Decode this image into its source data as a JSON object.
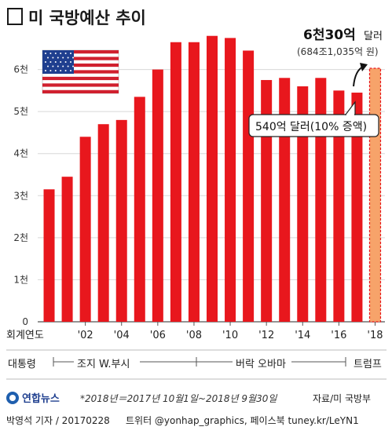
{
  "title": "미 국방예산 추이",
  "chart_data": {
    "type": "bar",
    "categories": [
      "2000",
      "2001",
      "2002",
      "2003",
      "2004",
      "2005",
      "2006",
      "2007",
      "2008",
      "2009",
      "2010",
      "2011",
      "2012",
      "2013",
      "2014",
      "2015",
      "2016",
      "2017",
      "2018"
    ],
    "values": [
      3150,
      3450,
      4400,
      4700,
      4800,
      5350,
      6000,
      6650,
      6650,
      6800,
      6750,
      6450,
      5750,
      5800,
      5600,
      5800,
      5500,
      5450,
      6030
    ],
    "ylim": [
      0,
      7000
    ],
    "ytick_labels": [
      "0",
      "1천",
      "2천",
      "3천",
      "4천",
      "5천",
      "6천"
    ],
    "xtick_labels": [
      "회계연도",
      "'02",
      "'04",
      "'06",
      "'08",
      "'10",
      "'12",
      "'14",
      "'16",
      "'18"
    ],
    "xlabel": "회계연도",
    "colors": {
      "bar": "#e8171d",
      "projected_fill": "#f7a36a",
      "projected_stroke": "#e8171d",
      "grid": "#d8d8d8"
    }
  },
  "annotations": {
    "projection_value": "6천30억",
    "projection_unit": "달러",
    "projection_krw": "(684조1,035억 원)",
    "current_box": "540억 달러(10% 증액)"
  },
  "eras": {
    "row_label": "대통령",
    "bush": "조지 W.부시",
    "obama": "버락 오바마",
    "trump": "트럼프"
  },
  "flag_icon": "us-flag-icon",
  "note": "*2018년＝2017년 10월1일~2018년 9월30일",
  "source": "자료/미 국방부",
  "logo_text": "연합뉴스",
  "footer": {
    "author": "박영석 기자 / 20170228",
    "social": "트위터 @yonhap_graphics, 페이스북 tuney.kr/LeYN1"
  }
}
